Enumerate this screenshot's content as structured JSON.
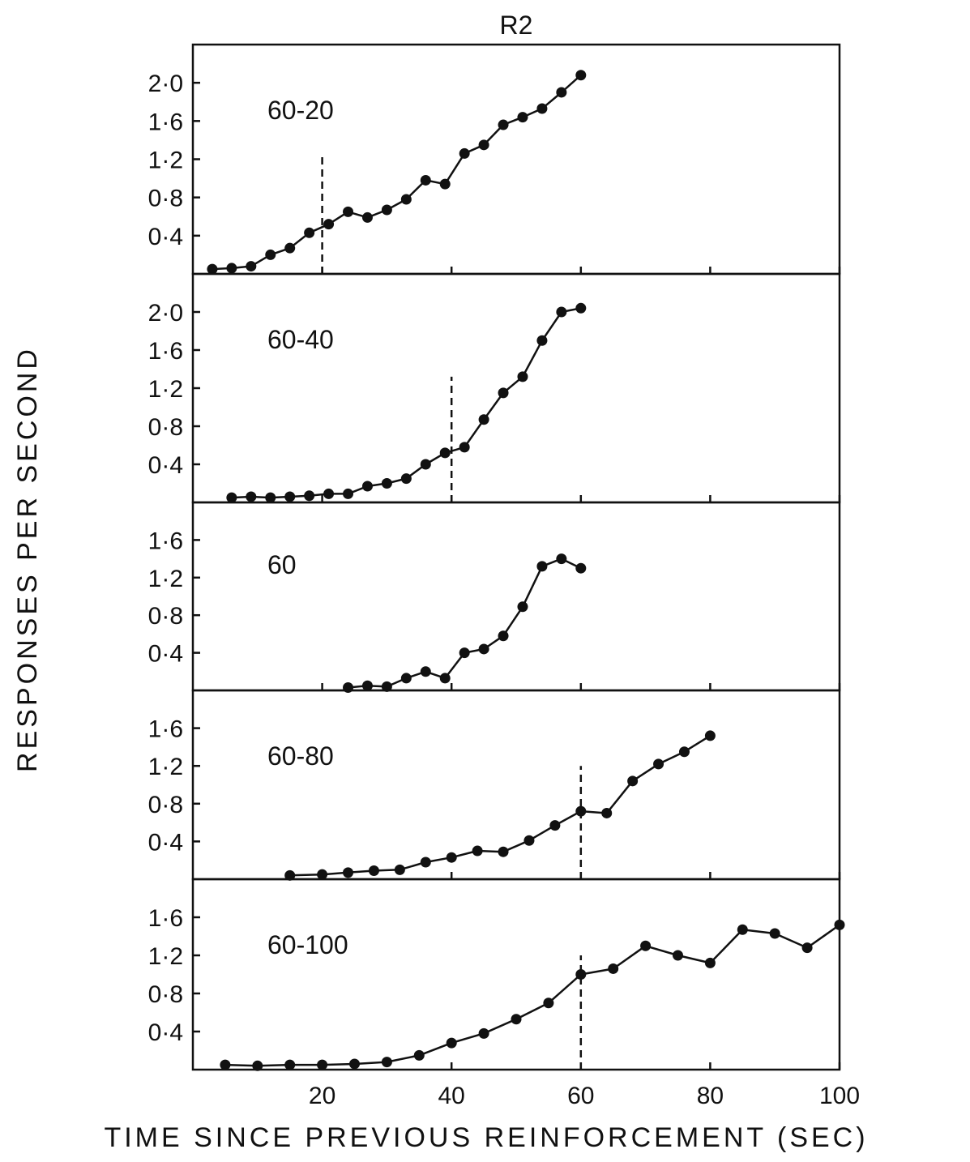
{
  "chart_data": {
    "type": "line",
    "title": "R2",
    "xlabel": "TIME SINCE PREVIOUS REINFORCEMENT (SEC)",
    "ylabel": "RESPONSES PER SECOND",
    "xlim": [
      0,
      100
    ],
    "x_ticks": [
      20,
      40,
      60,
      80,
      100
    ],
    "x_tick_labels": [
      "20",
      "40",
      "60",
      "80",
      "100"
    ],
    "grid": false,
    "legend": "none",
    "color": "#111111",
    "panels": [
      {
        "label": "60-20",
        "ylim": [
          0,
          2.4
        ],
        "y_ticks": [
          0.4,
          0.8,
          1.2,
          1.6,
          2.0
        ],
        "y_tick_labels": [
          "0·4",
          "0·8",
          "1·2",
          "1·6",
          "2·0"
        ],
        "dashed_x": 20,
        "x": [
          3,
          6,
          9,
          12,
          15,
          18,
          21,
          24,
          27,
          30,
          33,
          36,
          39,
          42,
          45,
          48,
          51,
          54,
          57,
          60
        ],
        "y": [
          0.05,
          0.06,
          0.08,
          0.2,
          0.27,
          0.43,
          0.52,
          0.65,
          0.59,
          0.67,
          0.78,
          0.98,
          0.94,
          1.26,
          1.35,
          1.56,
          1.64,
          1.73,
          1.9,
          2.08
        ]
      },
      {
        "label": "60-40",
        "ylim": [
          0,
          2.4
        ],
        "y_ticks": [
          0.4,
          0.8,
          1.2,
          1.6,
          2.0
        ],
        "y_tick_labels": [
          "0·4",
          "0·8",
          "1·2",
          "1·6",
          "2·0"
        ],
        "dashed_x": 40,
        "x": [
          6,
          9,
          12,
          15,
          18,
          21,
          24,
          27,
          30,
          33,
          36,
          39,
          42,
          45,
          48,
          51,
          54,
          57,
          60
        ],
        "y": [
          0.05,
          0.06,
          0.05,
          0.06,
          0.07,
          0.09,
          0.09,
          0.17,
          0.2,
          0.25,
          0.4,
          0.52,
          0.58,
          0.87,
          1.15,
          1.32,
          1.7,
          2.0,
          2.04
        ]
      },
      {
        "label": "60",
        "ylim": [
          0,
          2.0
        ],
        "y_ticks": [
          0.4,
          0.8,
          1.2,
          1.6
        ],
        "y_tick_labels": [
          "0·4",
          "0·8",
          "1·2",
          "1·6"
        ],
        "x": [
          24,
          27,
          30,
          33,
          36,
          39,
          42,
          45,
          48,
          51,
          54,
          57,
          60
        ],
        "y": [
          0.03,
          0.05,
          0.04,
          0.13,
          0.2,
          0.13,
          0.4,
          0.44,
          0.58,
          0.89,
          1.32,
          1.4,
          1.3
        ]
      },
      {
        "label": "60-80",
        "ylim": [
          0,
          2.0
        ],
        "y_ticks": [
          0.4,
          0.8,
          1.2,
          1.6
        ],
        "y_tick_labels": [
          "0·4",
          "0·8",
          "1·2",
          "1·6"
        ],
        "dashed_x": 60,
        "x": [
          15,
          20,
          24,
          28,
          32,
          36,
          40,
          44,
          48,
          52,
          56,
          60,
          64,
          68,
          72,
          76,
          80
        ],
        "y": [
          0.04,
          0.05,
          0.07,
          0.09,
          0.1,
          0.18,
          0.23,
          0.3,
          0.29,
          0.41,
          0.57,
          0.72,
          0.7,
          1.04,
          1.22,
          1.35,
          1.52
        ]
      },
      {
        "label": "60-100",
        "ylim": [
          0,
          2.0
        ],
        "y_ticks": [
          0.4,
          0.8,
          1.2,
          1.6
        ],
        "y_tick_labels": [
          "0·4",
          "0·8",
          "1·2",
          "1·6"
        ],
        "dashed_x": 60,
        "x": [
          5,
          10,
          15,
          20,
          25,
          30,
          35,
          40,
          45,
          50,
          55,
          60,
          65,
          70,
          75,
          80,
          85,
          90,
          95,
          100
        ],
        "y": [
          0.05,
          0.04,
          0.05,
          0.05,
          0.06,
          0.08,
          0.15,
          0.28,
          0.38,
          0.53,
          0.7,
          1.0,
          1.06,
          1.3,
          1.2,
          1.12,
          1.47,
          1.43,
          1.28,
          1.52
        ]
      }
    ]
  }
}
